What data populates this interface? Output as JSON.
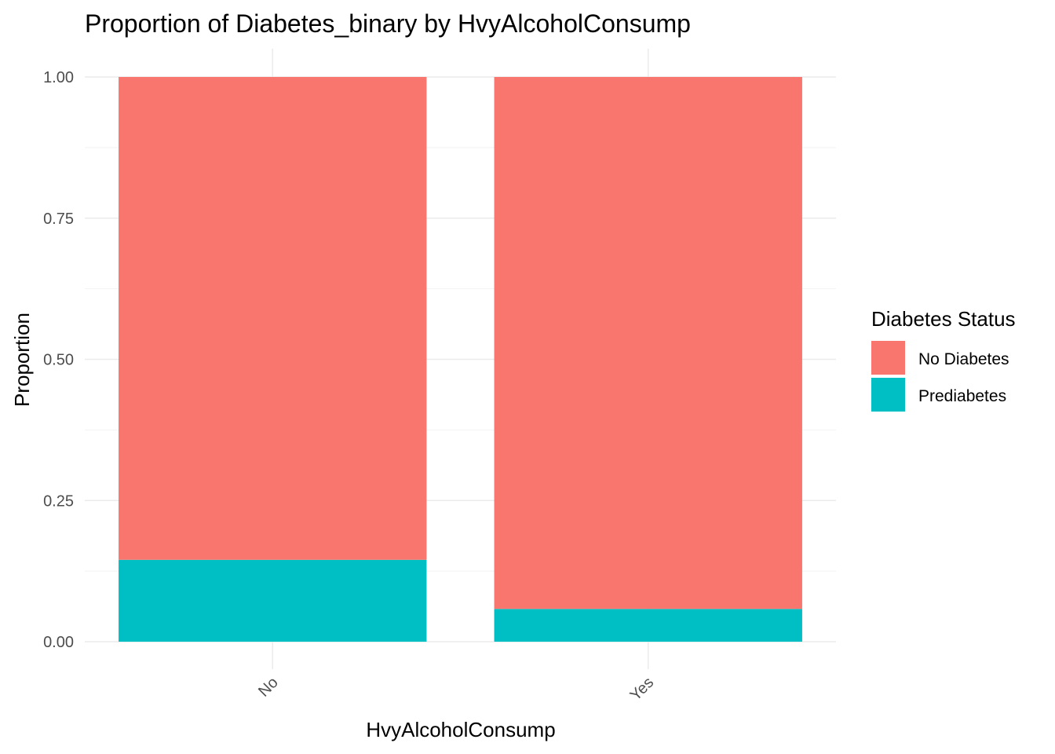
{
  "chart_data": {
    "type": "bar",
    "stacked": true,
    "title": "Proportion of Diabetes_binary by HvyAlcoholConsump",
    "xlabel": "HvyAlcoholConsump",
    "ylabel": "Proportion",
    "categories": [
      "No",
      "Yes"
    ],
    "series": [
      {
        "name": "Prediabetes",
        "color": "#00BFC4",
        "values": [
          0.145,
          0.058
        ]
      },
      {
        "name": "No Diabetes",
        "color": "#F8766D",
        "values": [
          0.855,
          0.942
        ]
      }
    ],
    "ylim": [
      0,
      1
    ],
    "yticks": [
      0,
      0.25,
      0.5,
      0.75,
      1.0
    ],
    "ytick_labels": [
      "0.00",
      "0.25",
      "0.50",
      "0.75",
      "1.00"
    ],
    "grid": true,
    "legend": {
      "title": "Diabetes Status",
      "position": "right",
      "entries": [
        {
          "label": "No Diabetes",
          "color": "#F8766D"
        },
        {
          "label": "Prediabetes",
          "color": "#00BFC4"
        }
      ]
    }
  }
}
